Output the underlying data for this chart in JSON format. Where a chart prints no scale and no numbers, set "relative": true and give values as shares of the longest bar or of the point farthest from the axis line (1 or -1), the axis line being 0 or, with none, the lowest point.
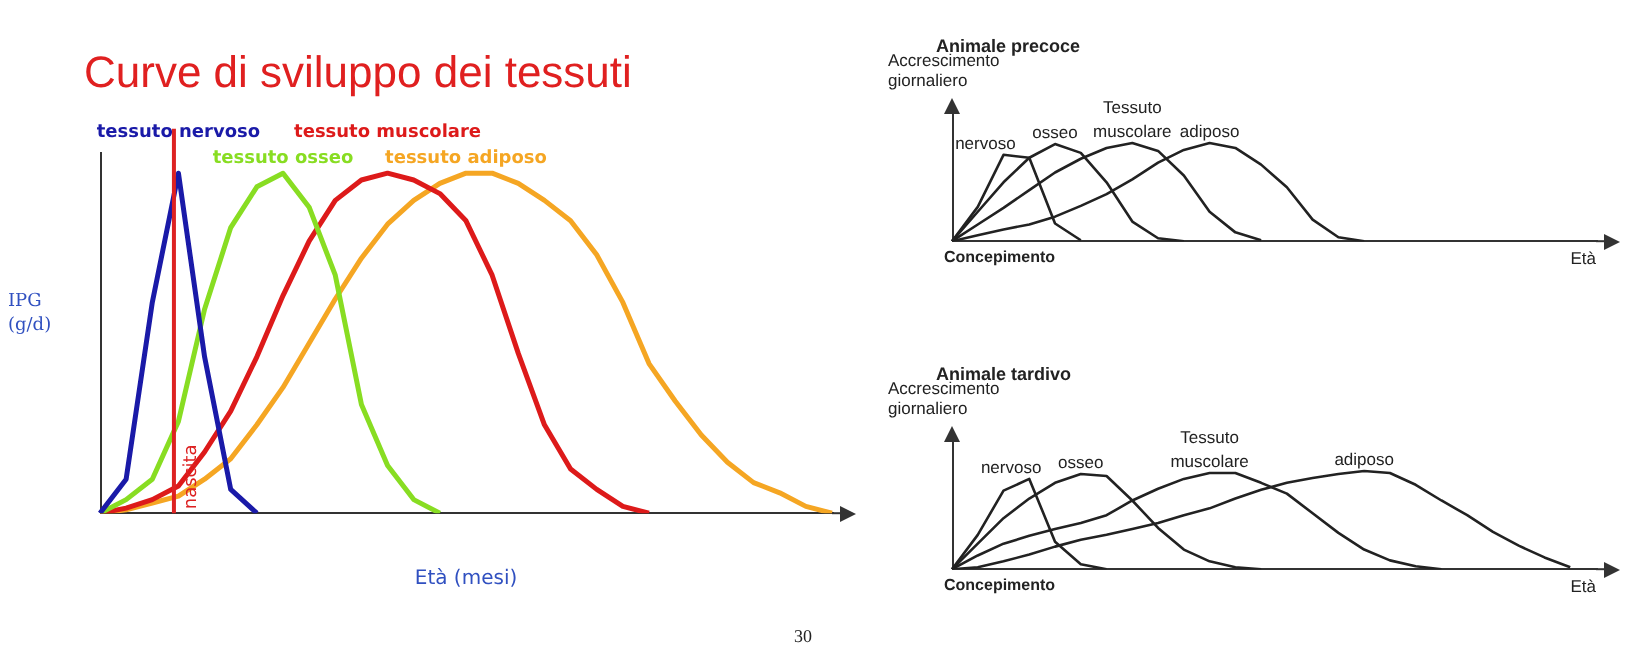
{
  "chart_data": [
    {
      "type": "line",
      "title": "Curve di sviluppo dei tessuti",
      "xlabel": "Età (mesi)",
      "ylabel": "IPG (g/d)",
      "relative": true,
      "marker": "none",
      "line_style": "solid",
      "grid": false,
      "categories": [
        null,
        null,
        null,
        null,
        null,
        null,
        null,
        null,
        null,
        null,
        null,
        null,
        null,
        null,
        null,
        null,
        null,
        null,
        null,
        null,
        null,
        null,
        null,
        null,
        null,
        null,
        null,
        null,
        null
      ],
      "annotations": [
        "nascita",
        "30"
      ],
      "series": [
        {
          "name": "tessuto nervoso",
          "color": "#1a1aa8",
          "values": [
            0,
            0.1,
            0.62,
            1,
            0.46,
            0.07,
            0,
            null,
            null,
            null,
            null,
            null,
            null,
            null,
            null,
            null,
            null,
            null,
            null,
            null,
            null,
            null,
            null,
            null,
            null,
            null,
            null,
            null,
            null
          ]
        },
        {
          "name": "tessuto osseo",
          "color": "#88dd22",
          "values": [
            0,
            0.04,
            0.1,
            0.27,
            0.6,
            0.84,
            0.96,
            1,
            0.9,
            0.7,
            0.32,
            0.14,
            0.04,
            0,
            null,
            null,
            null,
            null,
            null,
            null,
            null,
            null,
            null,
            null,
            null,
            null,
            null,
            null,
            null
          ]
        },
        {
          "name": "tessuto muscolare",
          "color": "#dd1a1a",
          "values": [
            0,
            0.015,
            0.04,
            0.08,
            0.18,
            0.3,
            0.46,
            0.64,
            0.8,
            0.92,
            0.98,
            1,
            0.98,
            0.94,
            0.86,
            0.7,
            0.47,
            0.26,
            0.13,
            0.07,
            0.02,
            0,
            null,
            null,
            null,
            null,
            null,
            null,
            null
          ]
        },
        {
          "name": "tessuto adiposo",
          "color": "#f5a623",
          "values": [
            0,
            0.01,
            0.03,
            0.05,
            0.1,
            0.16,
            0.26,
            0.37,
            0.5,
            0.63,
            0.75,
            0.85,
            0.92,
            0.97,
            1,
            1,
            0.97,
            0.92,
            0.86,
            0.76,
            0.62,
            0.44,
            0.33,
            0.23,
            0.15,
            0.09,
            0.06,
            0.02,
            0
          ]
        }
      ]
    },
    {
      "type": "line",
      "title": "Animale precoce",
      "xlabel": "Età",
      "ylabel": "Accrescimento giornaliero",
      "legend_title": "Tessuto",
      "relative": true,
      "marker": "none",
      "line_style": "solid",
      "grid": false,
      "categories": [
        null,
        null,
        null,
        null,
        null,
        null,
        null,
        null,
        null,
        null,
        null,
        null,
        null,
        null,
        null,
        null,
        null,
        null,
        null,
        null,
        null,
        null,
        null,
        null,
        null,
        null
      ],
      "annotations": [
        "Concepimento"
      ],
      "series": [
        {
          "name": "nervoso",
          "color": "#222222",
          "values": [
            0,
            0.35,
            0.88,
            0.85,
            0.18,
            0.01,
            null,
            null,
            null,
            null,
            null,
            null,
            null,
            null,
            null,
            null,
            null,
            null,
            null,
            null,
            null,
            null,
            null,
            null,
            null,
            null
          ]
        },
        {
          "name": "osseo",
          "color": "#222222",
          "values": [
            0,
            0.3,
            0.6,
            0.85,
            0.99,
            0.9,
            0.6,
            0.2,
            0.03,
            0,
            null,
            null,
            null,
            null,
            null,
            null,
            null,
            null,
            null,
            null,
            null,
            null,
            null,
            null,
            null,
            null
          ]
        },
        {
          "name": "muscolare",
          "color": "#222222",
          "values": [
            0,
            0.17,
            0.34,
            0.52,
            0.7,
            0.84,
            0.95,
            1,
            0.92,
            0.67,
            0.3,
            0.09,
            0.01,
            null,
            null,
            null,
            null,
            null,
            null,
            null,
            null,
            null,
            null,
            null,
            null,
            null
          ]
        },
        {
          "name": "adiposo",
          "color": "#222222",
          "values": [
            0,
            0.06,
            0.12,
            0.17,
            0.25,
            0.36,
            0.48,
            0.63,
            0.8,
            0.93,
            1,
            0.95,
            0.78,
            0.55,
            0.22,
            0.04,
            0,
            null,
            null,
            null,
            null,
            null,
            null,
            null,
            null,
            null
          ]
        }
      ]
    },
    {
      "type": "line",
      "title": "Animale tardivo",
      "xlabel": "Età",
      "ylabel": "Accrescimento giornaliero",
      "legend_title": "Tessuto",
      "relative": true,
      "marker": "none",
      "line_style": "solid",
      "grid": false,
      "categories": [
        null,
        null,
        null,
        null,
        null,
        null,
        null,
        null,
        null,
        null,
        null,
        null,
        null,
        null,
        null,
        null,
        null,
        null,
        null,
        null,
        null,
        null,
        null,
        null,
        null,
        null
      ],
      "annotations": [
        "Concepimento"
      ],
      "series": [
        {
          "name": "nervoso",
          "color": "#222222",
          "values": [
            0,
            0.35,
            0.8,
            0.92,
            0.28,
            0.05,
            0,
            null,
            null,
            null,
            null,
            null,
            null,
            null,
            null,
            null,
            null,
            null,
            null,
            null,
            null,
            null,
            null,
            null,
            null,
            null
          ]
        },
        {
          "name": "osseo",
          "color": "#222222",
          "values": [
            0,
            0.26,
            0.52,
            0.72,
            0.88,
            0.97,
            0.95,
            0.7,
            0.42,
            0.2,
            0.08,
            0.02,
            0,
            null,
            null,
            null,
            null,
            null,
            null,
            null,
            null,
            null,
            null,
            null,
            null,
            null
          ]
        },
        {
          "name": "muscolare",
          "color": "#222222",
          "values": [
            0,
            0.14,
            0.26,
            0.34,
            0.41,
            0.47,
            0.55,
            0.7,
            0.82,
            0.92,
            0.98,
            0.98,
            0.88,
            0.77,
            0.57,
            0.37,
            0.2,
            0.09,
            0.03,
            0,
            null,
            null,
            null,
            null,
            null,
            null
          ]
        },
        {
          "name": "adiposo",
          "color": "#222222",
          "values": [
            0,
            0.02,
            0.08,
            0.15,
            0.23,
            0.3,
            0.35,
            0.41,
            0.47,
            0.55,
            0.62,
            0.72,
            0.81,
            0.88,
            0.93,
            0.97,
            1,
            0.98,
            0.86,
            0.7,
            0.55,
            0.38,
            0.24,
            0.12,
            0.02,
            null
          ]
        }
      ]
    }
  ]
}
